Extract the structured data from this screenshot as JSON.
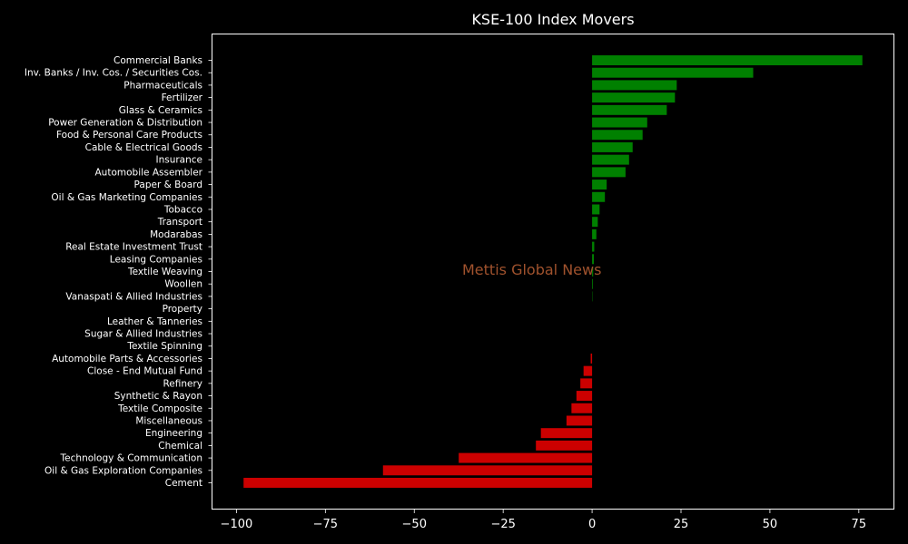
{
  "chart_data": {
    "type": "bar",
    "orientation": "horizontal",
    "title": "KSE-100 Index Movers",
    "watermark": "Mettis Global News",
    "xlabel": "",
    "ylabel": "",
    "xlim": [
      -107,
      85
    ],
    "xticks": [
      -100,
      -75,
      -50,
      -25,
      0,
      25,
      50,
      75
    ],
    "xtick_labels": [
      "−100",
      "−75",
      "−50",
      "−25",
      "0",
      "25",
      "50",
      "75"
    ],
    "grid": false,
    "positive_color": "#008000",
    "negative_color": "#cc0000",
    "background_color": "#000000",
    "categories": [
      "Commercial Banks",
      "Inv. Banks / Inv. Cos. / Securities Cos.",
      "Pharmaceuticals",
      "Fertilizer",
      "Glass & Ceramics",
      "Power Generation & Distribution",
      "Food & Personal Care Products",
      "Cable & Electrical Goods",
      "Insurance",
      "Automobile Assembler",
      "Paper & Board",
      "Oil & Gas Marketing Companies",
      "Tobacco",
      "Transport",
      "Modarabas",
      "Real Estate Investment Trust",
      "Leasing Companies",
      "Textile Weaving",
      "Woollen",
      "Vanaspati & Allied Industries",
      "Property",
      "Leather & Tanneries",
      "Sugar & Allied Industries",
      "Textile Spinning",
      "Automobile Parts & Accessories",
      "Close - End Mutual Fund",
      "Refinery",
      "Synthetic & Rayon",
      "Textile Composite",
      "Miscellaneous",
      "Engineering",
      "Chemical",
      "Technology & Communication",
      "Oil & Gas Exploration Companies",
      "Cement"
    ],
    "values": [
      76,
      45.3,
      23.8,
      23.3,
      21.0,
      15.5,
      14.2,
      11.4,
      10.4,
      9.4,
      4.1,
      3.6,
      2.1,
      1.6,
      1.2,
      0.6,
      0.5,
      0.3,
      0.2,
      0.1,
      0,
      0,
      0,
      0,
      -0.4,
      -2.4,
      -3.3,
      -4.4,
      -5.8,
      -7.2,
      -14.4,
      -15.8,
      -37.5,
      -58.8,
      -98.0
    ]
  }
}
